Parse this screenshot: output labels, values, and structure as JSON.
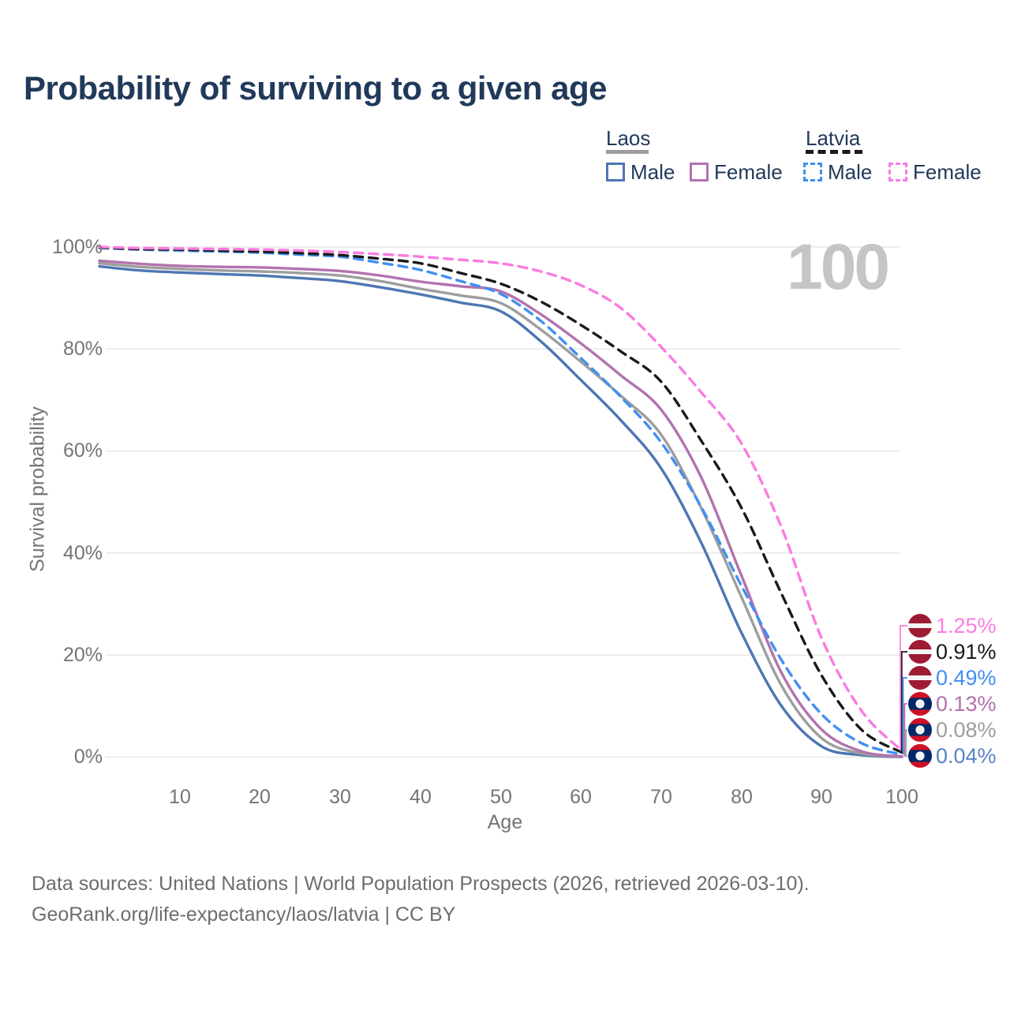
{
  "title": "Probability of surviving to a given age",
  "watermark_age": "100",
  "legend": {
    "laos": {
      "label": "Laos",
      "male": "Male",
      "female": "Female"
    },
    "latvia": {
      "label": "Latvia",
      "male": "Male",
      "female": "Female"
    }
  },
  "axes": {
    "y_title": "Survival probability",
    "x_title": "Age",
    "y_ticks": [
      "100%",
      "80%",
      "60%",
      "40%",
      "20%",
      "0%"
    ],
    "x_ticks": [
      "10",
      "20",
      "30",
      "40",
      "50",
      "60",
      "70",
      "80",
      "90",
      "100"
    ]
  },
  "chart_data": {
    "type": "line",
    "title": "Probability of surviving to a given age",
    "xlabel": "Age",
    "ylabel": "Survival probability",
    "xlim": [
      0,
      100
    ],
    "ylim": [
      0,
      100
    ],
    "grid": "horizontal",
    "x": [
      0,
      5,
      10,
      15,
      20,
      25,
      30,
      35,
      40,
      45,
      50,
      55,
      60,
      65,
      70,
      75,
      80,
      85,
      90,
      95,
      100
    ],
    "series": [
      {
        "name": "Laos Male",
        "country": "laos",
        "color": "#4d76b3",
        "dashed": false,
        "values": [
          96.2,
          95.4,
          95.0,
          94.7,
          94.4,
          93.9,
          93.3,
          92.1,
          90.7,
          89.1,
          87.4,
          81.5,
          73.9,
          66.0,
          56.6,
          42.0,
          24.4,
          10.0,
          2.1,
          0.4,
          0.04
        ]
      },
      {
        "name": "Laos Both sexes",
        "country": "laos",
        "color": "#9e9e9e",
        "dashed": false,
        "values": [
          96.8,
          96.1,
          95.7,
          95.4,
          95.2,
          94.9,
          94.4,
          93.3,
          91.8,
          90.5,
          89.0,
          83.8,
          77.5,
          70.8,
          63.2,
          48.8,
          31.4,
          14.0,
          3.7,
          0.7,
          0.08
        ]
      },
      {
        "name": "Laos Female",
        "country": "laos",
        "color": "#b273ae",
        "dashed": false,
        "values": [
          97.3,
          96.7,
          96.3,
          96.1,
          96.0,
          95.7,
          95.3,
          94.4,
          93.2,
          92.3,
          91.3,
          86.8,
          81.1,
          74.8,
          68.1,
          54.8,
          35.6,
          16.5,
          5.4,
          1.1,
          0.13
        ]
      },
      {
        "name": "Latvia Male",
        "country": "latvia",
        "color": "#418ff2",
        "dashed": true,
        "values": [
          99.8,
          99.5,
          99.3,
          99.1,
          98.9,
          98.5,
          98.1,
          96.9,
          95.5,
          93.3,
          90.8,
          85.5,
          78.2,
          70.6,
          61.7,
          49.0,
          33.6,
          19.0,
          8.4,
          2.7,
          0.49
        ]
      },
      {
        "name": "Latvia Both sexes",
        "country": "latvia",
        "color": "#1a1a1a",
        "dashed": true,
        "values": [
          99.9,
          99.6,
          99.5,
          99.3,
          99.1,
          98.8,
          98.4,
          97.7,
          96.8,
          94.9,
          92.8,
          89.3,
          84.7,
          79.5,
          73.6,
          62.0,
          48.9,
          32.0,
          16.0,
          5.3,
          0.91
        ]
      },
      {
        "name": "Latvia Female",
        "country": "latvia",
        "color": "#fb7be0",
        "dashed": true,
        "values": [
          100,
          99.8,
          99.7,
          99.6,
          99.5,
          99.3,
          99.0,
          98.6,
          98.1,
          97.5,
          96.8,
          95.2,
          92.5,
          88.0,
          80.4,
          71.5,
          61.5,
          45.0,
          23.3,
          9.0,
          1.25
        ]
      }
    ]
  },
  "end_labels": [
    {
      "value": "1.25%",
      "color": "#fb7be0",
      "flag": "latvia",
      "series": "Latvia Female"
    },
    {
      "value": "0.91%",
      "color": "#1a1a1a",
      "flag": "latvia",
      "series": "Latvia Both sexes"
    },
    {
      "value": "0.49%",
      "color": "#418ff2",
      "flag": "latvia",
      "series": "Latvia Male"
    },
    {
      "value": "0.13%",
      "color": "#b273ae",
      "flag": "laos",
      "series": "Laos Female"
    },
    {
      "value": "0.08%",
      "color": "#9e9e9e",
      "flag": "laos",
      "series": "Laos Both sexes"
    },
    {
      "value": "0.04%",
      "color": "#5b82c5",
      "flag": "laos",
      "series": "Laos Male"
    }
  ],
  "flag_colors": {
    "latvia_carmine": "#9e1b34",
    "laos_red": "#ce1126",
    "laos_blue": "#002868"
  },
  "footer": {
    "line1": "Data sources: United Nations | World Population Prospects (2026, retrieved 2026-03-10).",
    "line2": "GeoRank.org/life-expectancy/laos/latvia | CC BY"
  }
}
